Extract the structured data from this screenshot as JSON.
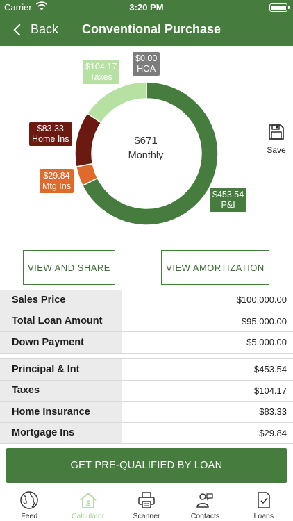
{
  "status_bar": {
    "carrier": "Carrier",
    "time": "3:20 PM"
  },
  "nav": {
    "back_label": "Back",
    "title": "Conventional Purchase"
  },
  "chart_data": {
    "type": "pie",
    "donut": true,
    "categories": [
      "P&I",
      "Mtg Ins",
      "Home Ins",
      "Taxes",
      "HOA"
    ],
    "values": [
      453.54,
      29.84,
      83.33,
      104.17,
      0.0
    ],
    "value_labels": [
      "$453.54",
      "$29.84",
      "$83.33",
      "$104.17",
      "$0.00"
    ],
    "colors": [
      "#467c3d",
      "#e06a2b",
      "#6b1a12",
      "#b7e0a3",
      "#7c7c7c"
    ],
    "center_value": "$671",
    "center_label": "Monthly"
  },
  "save": {
    "label": "Save"
  },
  "actions": {
    "view_share": "VIEW AND SHARE",
    "view_amort": "VIEW AMORTIZATION"
  },
  "summary_rows": [
    {
      "label": "Sales Price",
      "value": "$100,000.00"
    },
    {
      "label": "Total Loan Amount",
      "value": "$95,000.00"
    },
    {
      "label": "Down Payment",
      "value": "$5,000.00"
    }
  ],
  "payment_rows": [
    {
      "label": "Principal & Int",
      "value": "$453.54"
    },
    {
      "label": "Taxes",
      "value": "$104.17"
    },
    {
      "label": "Home Insurance",
      "value": "$83.33"
    },
    {
      "label": "Mortgage Ins",
      "value": "$29.84"
    }
  ],
  "cta": {
    "label": "GET PRE-QUALIFIED BY LOAN"
  },
  "tabs": [
    {
      "label": "Feed",
      "icon": "globe-icon"
    },
    {
      "label": "Calculator",
      "icon": "house-dollar-icon"
    },
    {
      "label": "Scanner",
      "icon": "printer-icon"
    },
    {
      "label": "Contacts",
      "icon": "contacts-icon"
    },
    {
      "label": "Loans",
      "icon": "document-check-icon"
    }
  ],
  "active_tab": "Calculator"
}
